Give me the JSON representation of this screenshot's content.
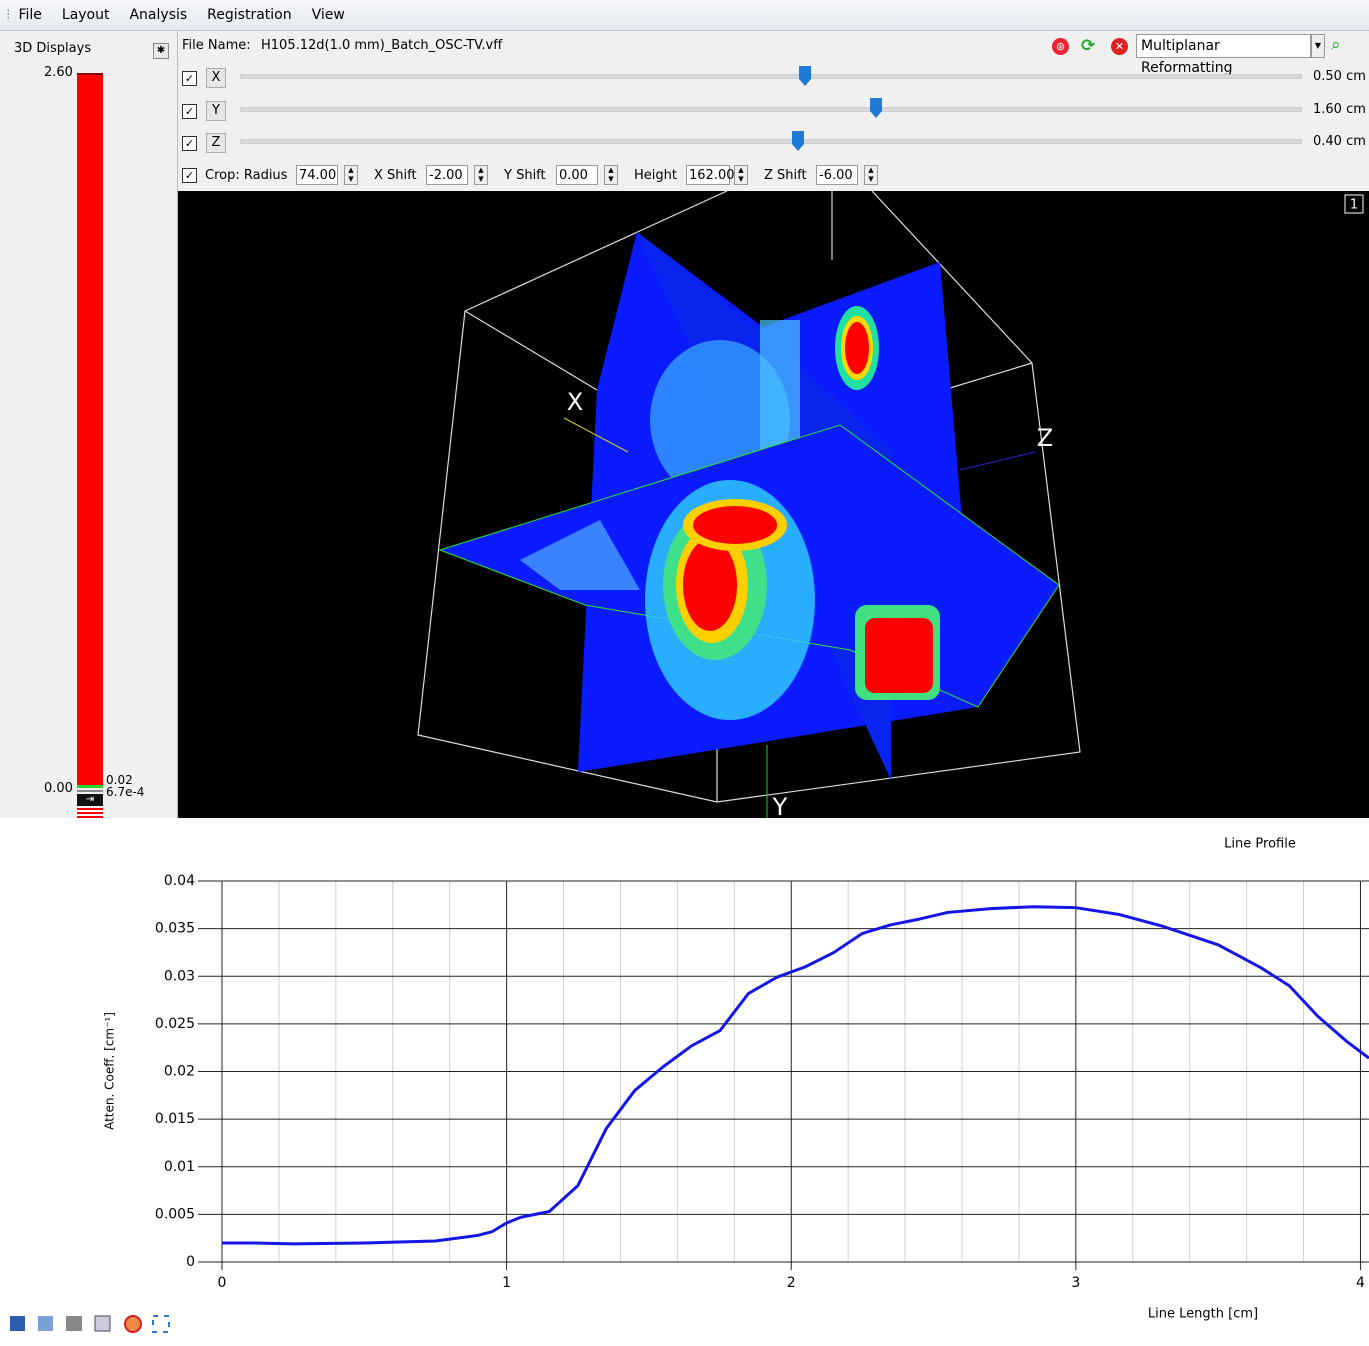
{
  "menu": [
    "File",
    "Layout",
    "Analysis",
    "Registration",
    "View"
  ],
  "left_panel": {
    "title": "3D Displays",
    "scale_max": "2.60",
    "scale_min": "0.00",
    "scale_labels": [
      "0.02",
      "6.7e-4"
    ]
  },
  "toolbar": {
    "file_label": "File Name:",
    "file_name": "H105.12d(1.0 mm)_Batch_OSC-TV.vff",
    "mode": "Multiplanar Reformatting",
    "sliders": [
      {
        "axis": "X",
        "value": "0.50 cm"
      },
      {
        "axis": "Y",
        "value": "1.60 cm"
      },
      {
        "axis": "Z",
        "value": "0.40 cm"
      }
    ],
    "crop": {
      "label": "Crop: Radius",
      "radius": "74.00",
      "fields": [
        {
          "label": "X Shift",
          "value": "-2.00"
        },
        {
          "label": "Y Shift",
          "value": "0.00"
        },
        {
          "label": "Height",
          "value": "162.00"
        },
        {
          "label": "Z Shift",
          "value": "-6.00"
        }
      ]
    }
  },
  "viewport": {
    "index": "1",
    "axis_labels": [
      "X",
      "Z",
      "Y"
    ]
  },
  "chart_data": {
    "type": "line",
    "title": "Line Profile",
    "x_label": "Line Length [cm]",
    "y_label": "Atten. Coeff. [cm⁻¹]",
    "x": [
      0,
      0.1,
      0.25,
      0.5,
      0.75,
      0.9,
      0.95,
      1.0,
      1.05,
      1.15,
      1.25,
      1.35,
      1.45,
      1.55,
      1.65,
      1.75,
      1.85,
      1.95,
      2.05,
      2.15,
      2.25,
      2.35,
      2.45,
      2.55,
      2.7,
      2.85,
      3.0,
      3.15,
      3.3,
      3.4,
      3.5,
      3.65,
      3.75,
      3.85,
      3.95,
      4.03
    ],
    "values": [
      0.002,
      0.002,
      0.0019,
      0.002,
      0.0022,
      0.0028,
      0.0032,
      0.0041,
      0.0047,
      0.0053,
      0.008,
      0.014,
      0.018,
      0.0205,
      0.0227,
      0.0243,
      0.0282,
      0.0299,
      0.031,
      0.0325,
      0.0345,
      0.0354,
      0.036,
      0.0367,
      0.0371,
      0.0373,
      0.0372,
      0.0365,
      0.0353,
      0.0343,
      0.0333,
      0.0309,
      0.029,
      0.0258,
      0.0232,
      0.0214
    ],
    "color": "#1515e6",
    "xlim": [
      0,
      4.03
    ],
    "ylim": [
      0,
      0.04
    ],
    "xticks": [
      0,
      1,
      2,
      3,
      4
    ],
    "x_minor_ticks": [
      0.2,
      0.4,
      0.6,
      0.8,
      1.2,
      1.4,
      1.6,
      1.8,
      2.2,
      2.4,
      2.6,
      2.8,
      3.2,
      3.4,
      3.6,
      3.8
    ],
    "yticks": [
      0,
      0.005,
      0.01,
      0.015,
      0.02,
      0.025,
      0.03,
      0.035,
      0.04
    ],
    "grid": true
  }
}
